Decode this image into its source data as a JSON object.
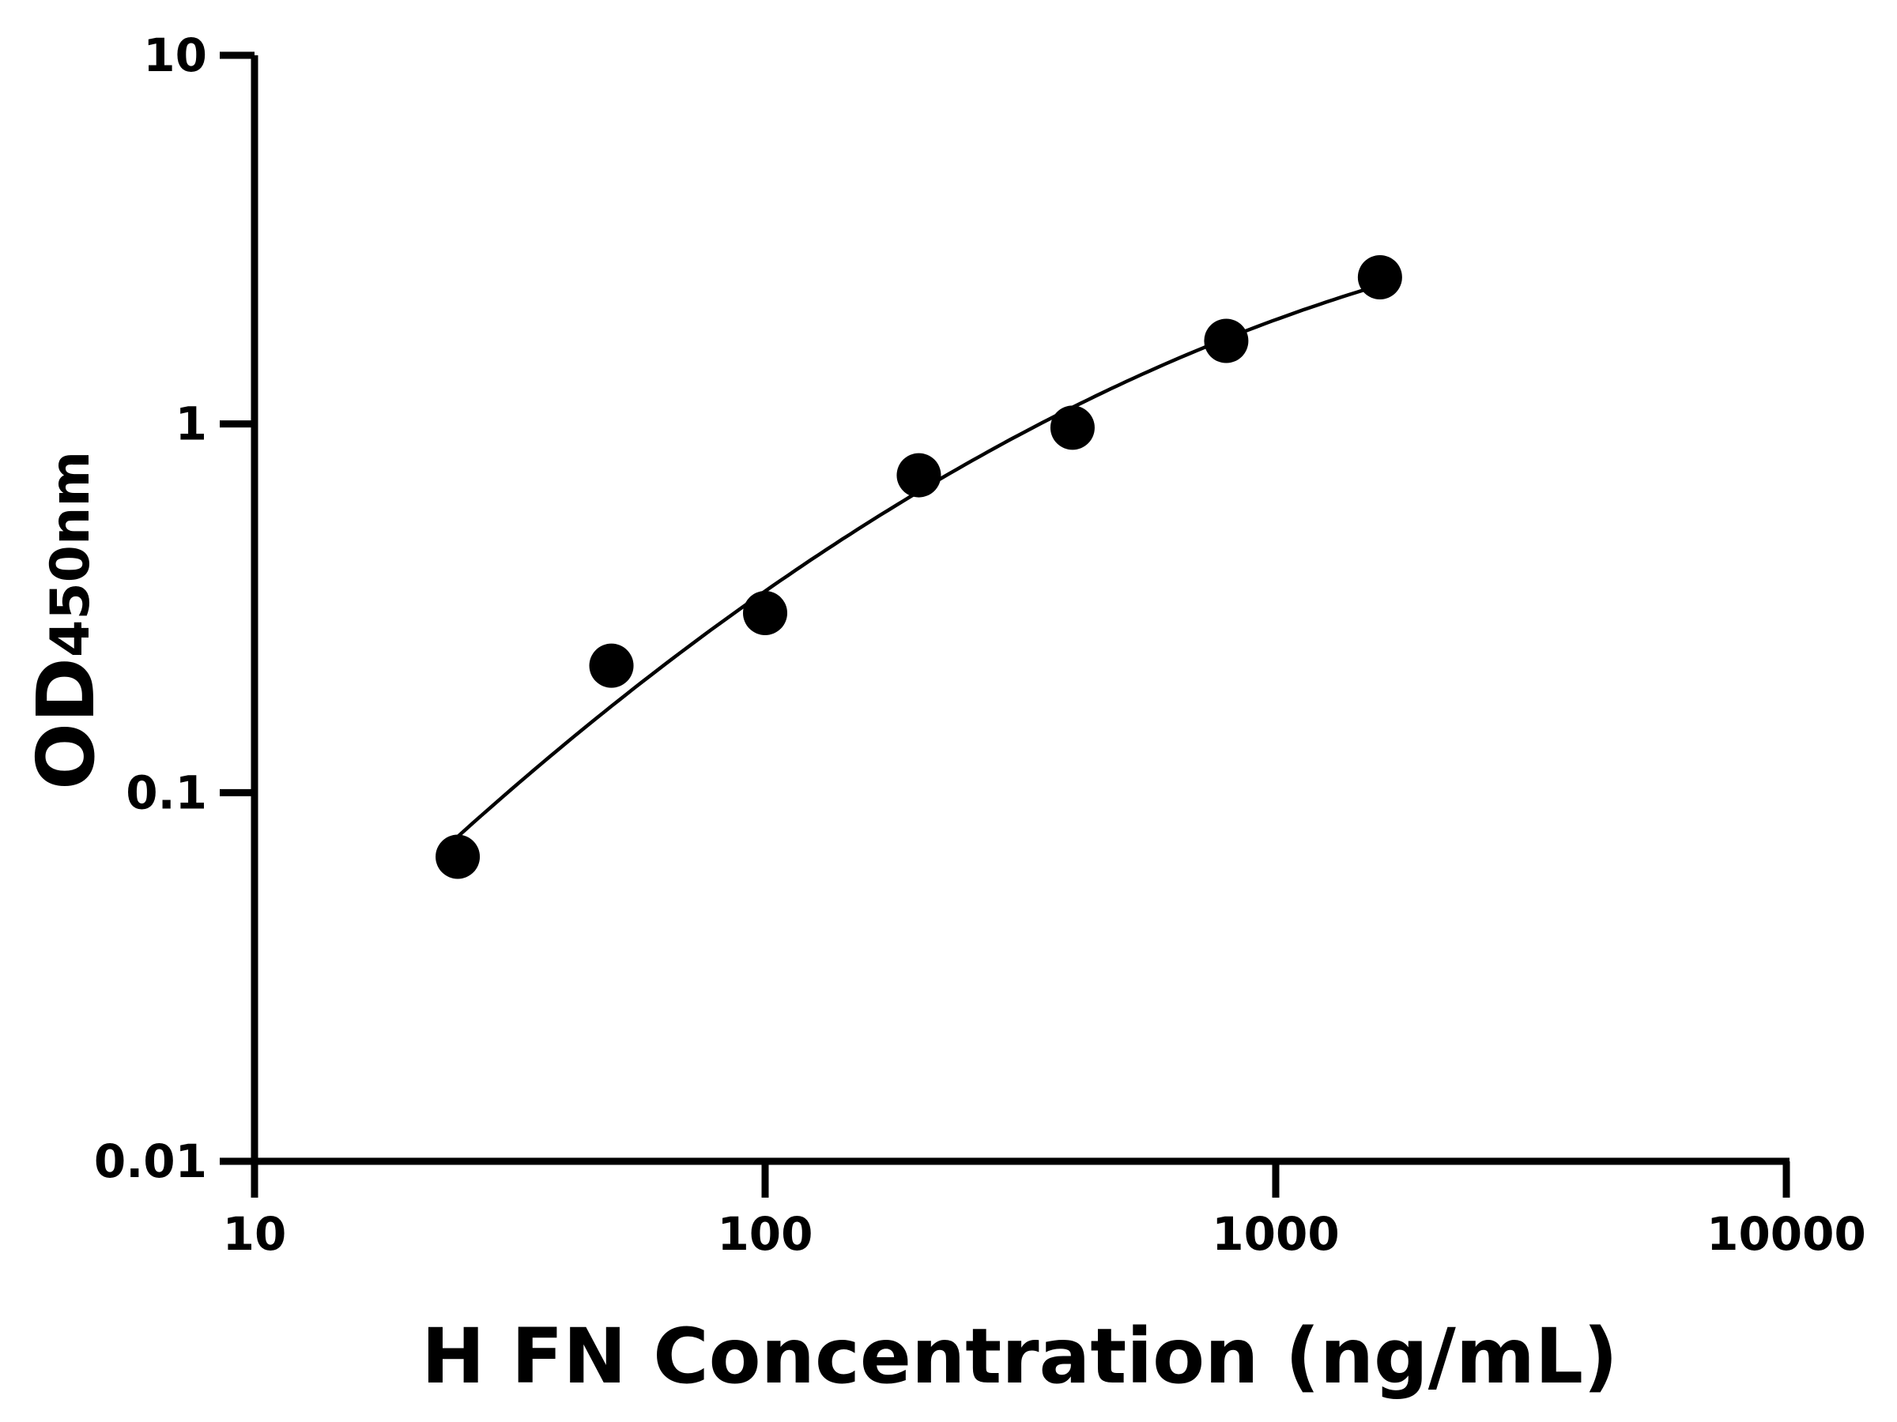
{
  "chart_data": {
    "type": "scatter",
    "title": "",
    "xlabel": "H FN Concentration (ng/mL)",
    "ylabel": "OD",
    "ylabel_subscript": "450nm",
    "x_scale": "log",
    "y_scale": "log",
    "xlim": [
      10,
      10000
    ],
    "ylim": [
      0.01,
      10
    ],
    "x_ticks": [
      "10",
      "100",
      "1000",
      "10000"
    ],
    "y_ticks": [
      "0.01",
      "0.1",
      "1",
      "10"
    ],
    "grid": false,
    "legend": "none",
    "fit_line": true,
    "marker_color": "#000000",
    "line_color": "#000000",
    "series": [
      {
        "x": [
          25,
          50,
          100,
          200,
          400,
          800,
          1600
        ],
        "y": [
          0.067,
          0.221,
          0.307,
          0.726,
          0.977,
          1.68,
          2.5
        ]
      }
    ]
  }
}
